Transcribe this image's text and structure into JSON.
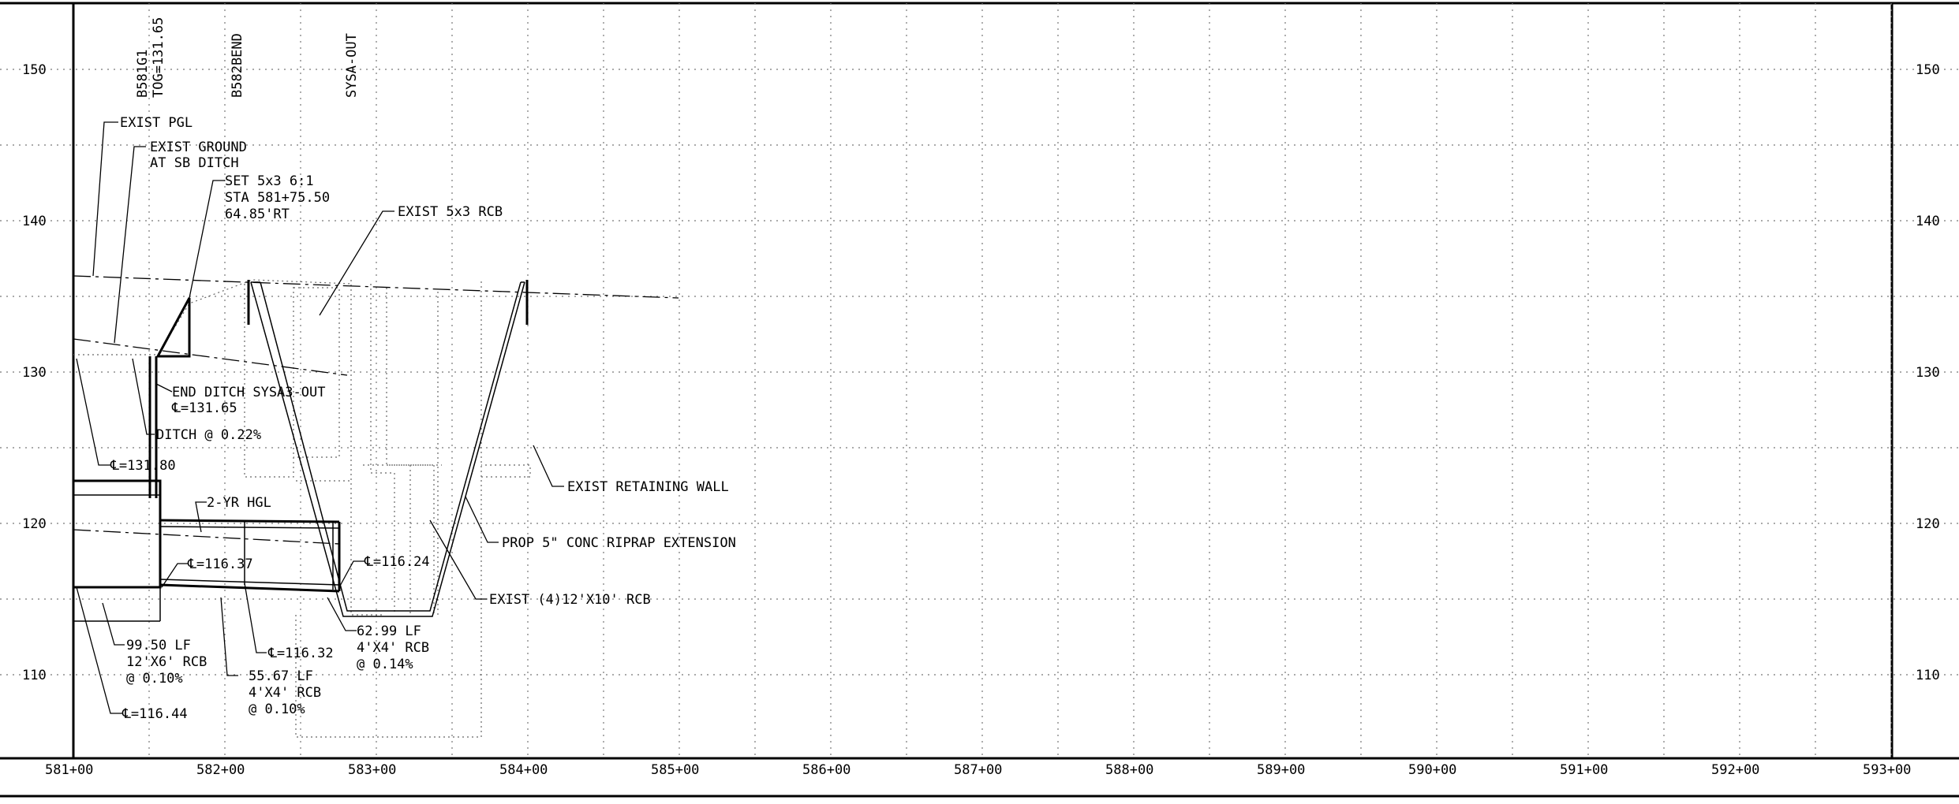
{
  "axes": {
    "elevation_ticks": [
      "150",
      "140",
      "130",
      "120",
      "110"
    ],
    "station_ticks": [
      "581+00",
      "582+00",
      "583+00",
      "584+00",
      "585+00",
      "586+00",
      "587+00",
      "588+00",
      "589+00",
      "590+00",
      "591+00",
      "592+00",
      "593+00"
    ]
  },
  "vertical_labels": {
    "b581g1": "B581G1",
    "tog": "TOG=131.65",
    "b582bend": "B582BEND",
    "sysa_out": "SYSA-OUT"
  },
  "annotations": {
    "exist_pgl": "EXIST PGL",
    "exist_ground_1": "EXIST GROUND",
    "exist_ground_2": "AT SB DITCH",
    "set_1": "SET 5x3 6:1",
    "set_2": "STA 581+75.50",
    "set_3": "64.85'RT",
    "exist_rcb": "EXIST 5x3 RCB",
    "end_ditch": "END DITCH SYSA3-OUT",
    "fl_13165": "℄=131.65",
    "ditch_slope": "DITCH @ 0.22%",
    "fl_13180": "℄=131.80",
    "exist_retaining_wall": "EXIST RETAINING WALL",
    "hgl": "2-YR HGL",
    "riprap": "PROP 5\" CONC RIPRAP EXTENSION",
    "fl_11637": "℄=116.37",
    "fl_11624": "℄=116.24",
    "exist_4rcb": "EXIST (4)12'X10' RCB",
    "lf_9950_1": "99.50 LF",
    "lf_9950_2": "12'X6' RCB",
    "lf_9950_3": "@ 0.10%",
    "fl_11632": "℄=116.32",
    "lf_6299_1": "62.99 LF",
    "lf_6299_2": "4'X4' RCB",
    "lf_6299_3": "@ 0.14%",
    "lf_5567_1": "55.67 LF",
    "lf_5567_2": "4'X4' RCB",
    "lf_5567_3": "@ 0.10%",
    "fl_11644": "℄=116.44"
  }
}
